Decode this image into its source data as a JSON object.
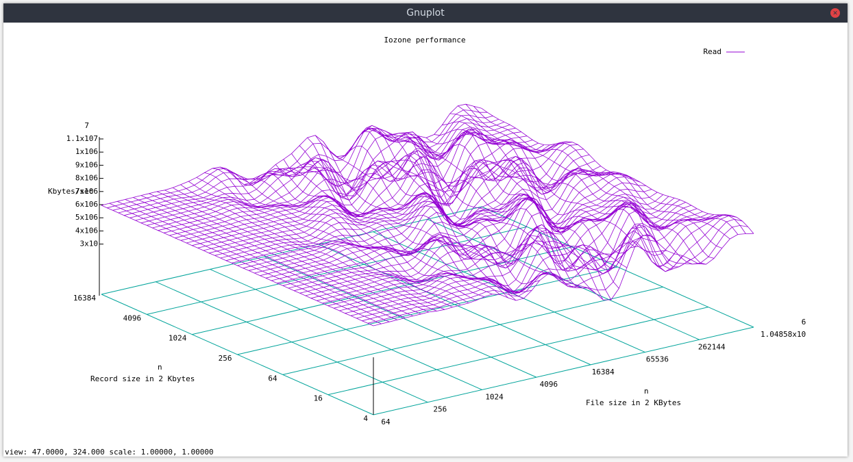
{
  "window": {
    "title": "Gnuplot"
  },
  "plot": {
    "title": "Iozone performance",
    "legend": "Read",
    "z_axis": {
      "label": "Kbytes/sec",
      "exponent_overflow": "7",
      "ticks": [
        "1.1x107",
        "1x106",
        "9x106",
        "8x106",
        "7x106",
        "6x106",
        "5x106",
        "4x106",
        "3x10"
      ]
    },
    "record_axis": {
      "ticks": [
        "16384",
        "4096",
        "1024",
        "256",
        "64",
        "16",
        "4"
      ],
      "exponent": "n",
      "label": "Record size in 2  Kbytes"
    },
    "file_axis": {
      "ticks": [
        "64",
        "256",
        "1024",
        "4096",
        "16384",
        "65536",
        "262144",
        "1.04858x10"
      ],
      "exponent_overflow": "6",
      "exponent": "n",
      "label": "File size in 2  KBytes"
    }
  },
  "status_bar": {
    "text": "view:  47.0000,  324.000   scale:  1.00000,  1.00000"
  }
}
